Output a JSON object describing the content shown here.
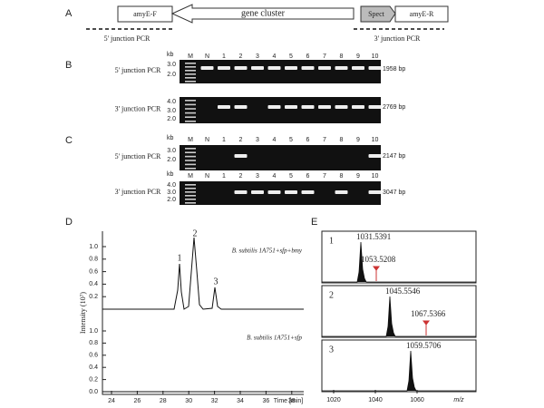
{
  "panel_a": {
    "label": "A",
    "left_primer": "amyE-F",
    "cluster": "gene cluster",
    "marker": "Spect",
    "right_primer": "amyE-R",
    "left_pcr": "5' junction PCR",
    "right_pcr": "3' junction PCR"
  },
  "gels": {
    "unit": "kb",
    "lanes": [
      "M",
      "N",
      "1",
      "2",
      "3",
      "4",
      "5",
      "6",
      "7",
      "8",
      "9",
      "10"
    ],
    "panels": [
      {
        "label": "B",
        "rows": [
          {
            "title": "5' junction PCR",
            "ticks": [
              "3.0",
              "2.0"
            ],
            "size": "1958 bp"
          },
          {
            "title": "3' junction PCR",
            "ticks": [
              "4.0",
              "3.0",
              "2.0"
            ],
            "size": "2769 bp"
          }
        ]
      },
      {
        "label": "C",
        "rows": [
          {
            "title": "5' junction PCR",
            "ticks": [
              "3.0",
              "2.0"
            ],
            "size": "2147 bp"
          },
          {
            "title": "3' junction PCR",
            "ticks": [
              "4.0",
              "3.0",
              "2.0"
            ],
            "size": "3047 bp"
          }
        ]
      }
    ]
  },
  "panel_d": {
    "label": "D",
    "y_label": "Intensity (10⁷)",
    "upper_ticks": [
      "1.0",
      "0.8",
      "0.6",
      "0.4",
      "0.2"
    ],
    "lower_ticks": [
      "1.0",
      "0.8",
      "0.6",
      "0.4",
      "0.2",
      "0.0"
    ],
    "x_ticks": [
      "24",
      "26",
      "28",
      "30",
      "32",
      "34",
      "36",
      "38"
    ],
    "x_label": "Time [min]",
    "peaks": [
      "1",
      "2",
      "3"
    ],
    "upper_sample": "B. subtilis 1A751+sfp+bmy",
    "lower_sample": "B. subtilis 1A751+sfp"
  },
  "panel_e": {
    "label": "E",
    "x_ticks": [
      "1020",
      "1040",
      "1060"
    ],
    "x_label": "m/z",
    "spectra": [
      {
        "label": "1",
        "main": "1031.5391",
        "adduct": "1053.5208"
      },
      {
        "label": "2",
        "main": "1045.5546",
        "adduct": "1067.5366"
      },
      {
        "label": "3",
        "main": "1059.5706"
      }
    ]
  }
}
